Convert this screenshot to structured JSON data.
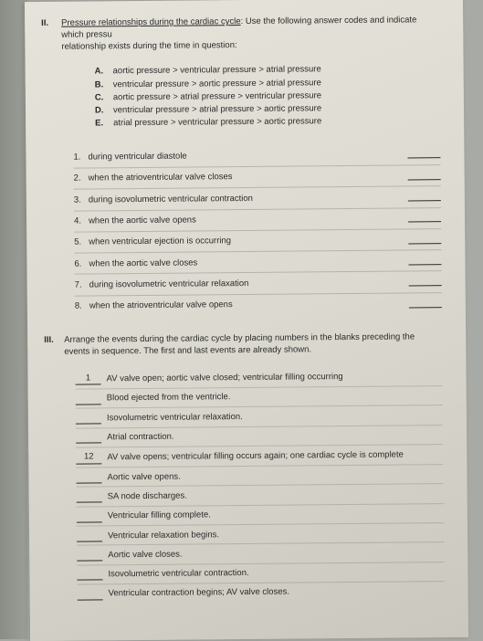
{
  "sectionII": {
    "number": "II.",
    "title_underlined": "Pressure relationships during the cardiac cycle",
    "title_rest": ": Use the following answer codes and indicate which pressu",
    "subtitle": "relationship exists during the time in question:",
    "options": [
      {
        "letter": "A.",
        "text": "aortic pressure > ventricular pressure > atrial pressure"
      },
      {
        "letter": "B.",
        "text": "ventricular pressure > aortic pressure > atrial pressure"
      },
      {
        "letter": "C.",
        "text": "aortic pressure > atrial pressure > ventricular pressure"
      },
      {
        "letter": "D.",
        "text": "ventricular pressure > atrial pressure > aortic pressure"
      },
      {
        "letter": "E.",
        "text": "atrial pressure > ventricular pressure > aortic pressure"
      }
    ],
    "items": [
      {
        "num": "1.",
        "text": "during ventricular diastole"
      },
      {
        "num": "2.",
        "text": "when the atrioventricular valve closes"
      },
      {
        "num": "3.",
        "text": "during isovolumetric ventricular contraction"
      },
      {
        "num": "4.",
        "text": "when the aortic valve opens"
      },
      {
        "num": "5.",
        "text": "when ventricular ejection is occurring"
      },
      {
        "num": "6.",
        "text": "when the aortic valve closes"
      },
      {
        "num": "7.",
        "text": "during isovolumetric ventricular relaxation"
      },
      {
        "num": "8.",
        "text": "when the atrioventricular valve opens"
      }
    ]
  },
  "sectionIII": {
    "number": "III.",
    "text": "Arrange the events during the cardiac cycle by placing numbers in the blanks preceding the events in sequence. The first and last events are already shown.",
    "items": [
      {
        "blank": "1",
        "text": "AV valve open; aortic valve closed; ventricular filling occurring"
      },
      {
        "blank": "",
        "text": "Blood ejected from the ventricle."
      },
      {
        "blank": "",
        "text": "Isovolumetric ventricular relaxation."
      },
      {
        "blank": "",
        "text": "Atrial contraction."
      },
      {
        "blank": "12",
        "text": "AV valve opens; ventricular filling occurs again; one cardiac cycle is complete"
      },
      {
        "blank": "",
        "text": "Aortic valve opens."
      },
      {
        "blank": "",
        "text": "SA node discharges."
      },
      {
        "blank": "",
        "text": "Ventricular filling complete."
      },
      {
        "blank": "",
        "text": "Ventricular relaxation begins."
      },
      {
        "blank": "",
        "text": "Aortic valve closes."
      },
      {
        "blank": "",
        "text": "Isovolumetric ventricular contraction."
      },
      {
        "blank": "",
        "text": "Ventricular contraction begins; AV valve closes."
      }
    ]
  }
}
